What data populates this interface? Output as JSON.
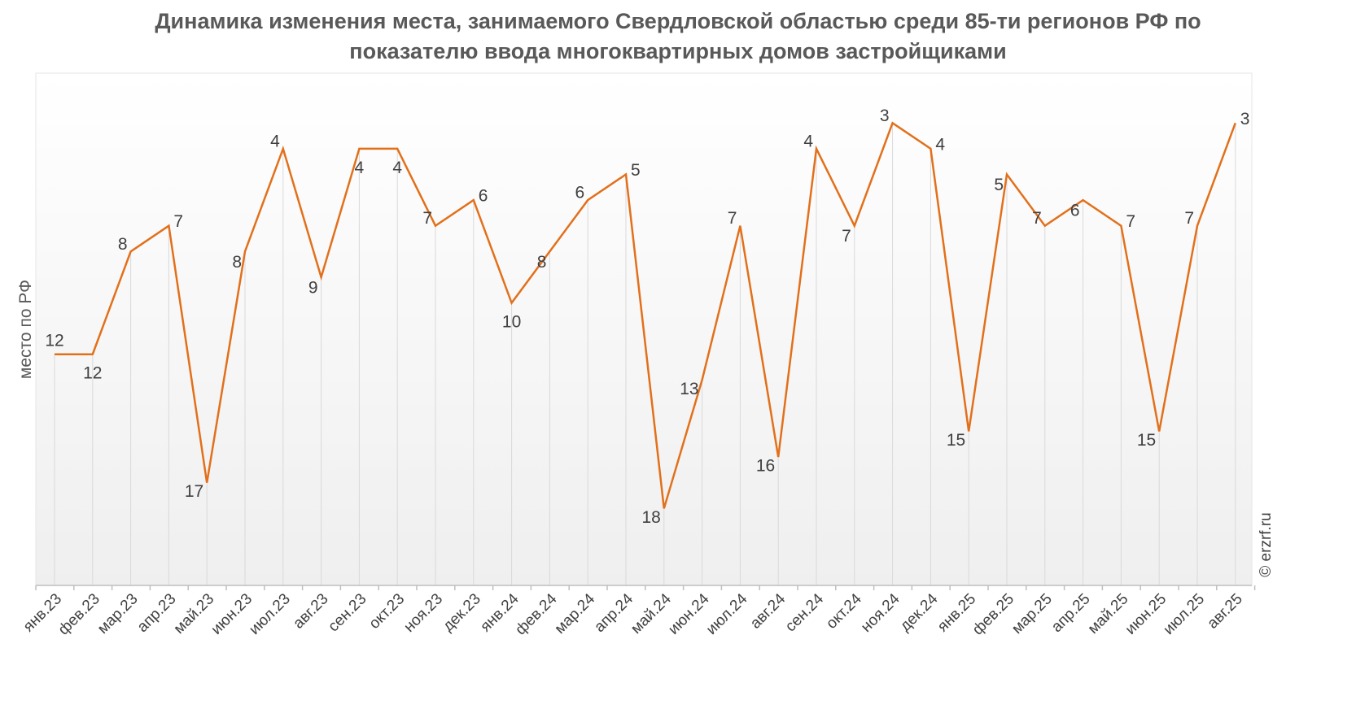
{
  "title": {
    "line1": "Динамика изменения места, занимаемого Свердловской областью среди 85-ти регионов РФ по",
    "line2": "показателю ввода многоквартирных домов застройщиками"
  },
  "watermark": "© erzrf.ru",
  "colors": {
    "line": "#E2701B",
    "axis": "#BFBFBF",
    "grid": "#D9D9D9",
    "text": "#404040"
  },
  "chart_data": {
    "type": "line",
    "ylabel": "место по РФ",
    "y_reversed": true,
    "ylim": [
      1,
      21
    ],
    "grid": "vertical drop lines",
    "categories": [
      "янв.23",
      "фев.23",
      "мар.23",
      "апр.23",
      "май.23",
      "июн.23",
      "июл.23",
      "авг.23",
      "сен.23",
      "окт.23",
      "ноя.23",
      "дек.23",
      "янв.24",
      "фев.24",
      "мар.24",
      "апр.24",
      "май.24",
      "июн.24",
      "июл.24",
      "авг.24",
      "сен.24",
      "окт.24",
      "ноя.24",
      "дек.24",
      "янв.25",
      "фев.25",
      "мар.25",
      "апр.25",
      "май.25",
      "июн.25",
      "июл.25",
      "авг.25"
    ],
    "values": [
      12,
      12,
      8,
      7,
      17,
      8,
      4,
      9,
      4,
      4,
      7,
      6,
      10,
      8,
      6,
      5,
      18,
      13,
      7,
      16,
      4,
      7,
      3,
      4,
      15,
      5,
      7,
      6,
      7,
      15,
      7,
      3
    ],
    "label_positions": [
      "above",
      "below",
      "left",
      "right",
      "left",
      "left",
      "left",
      "left",
      "below",
      "below",
      "left",
      "right",
      "below",
      "left",
      "left",
      "right",
      "left",
      "left",
      "left",
      "left",
      "left",
      "left",
      "left",
      "right",
      "left",
      "left",
      "left",
      "left",
      "right",
      "left",
      "left",
      "right"
    ]
  }
}
